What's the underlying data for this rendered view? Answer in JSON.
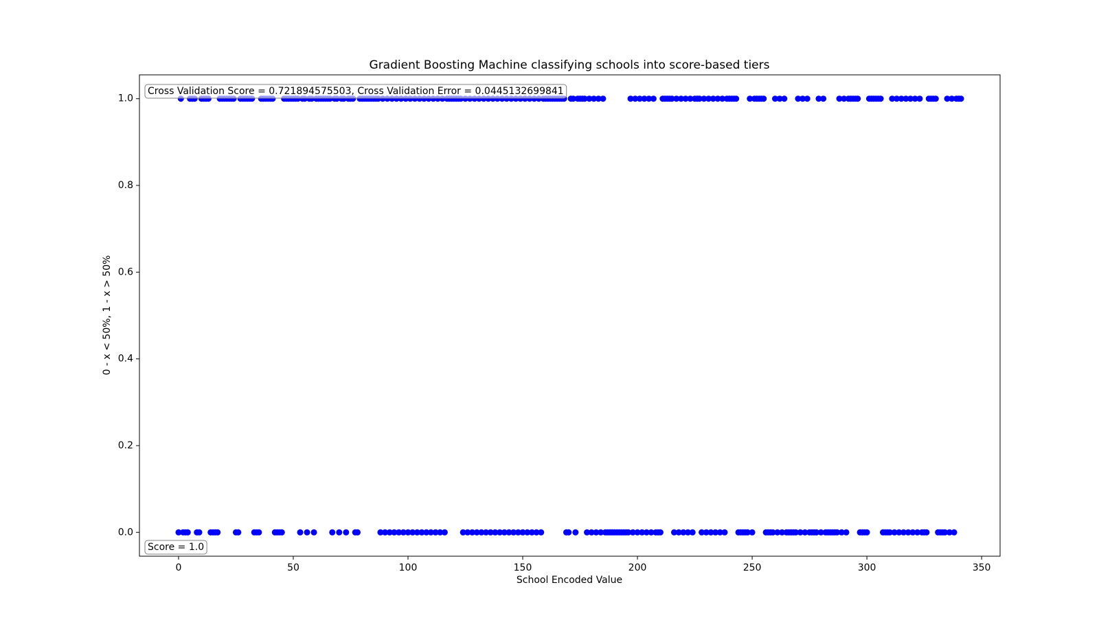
{
  "chart_data": {
    "type": "scatter",
    "title": "Gradient Boosting Machine classifying schools into score-based tiers",
    "xlabel": "School Encoded Value",
    "ylabel": "0 - x < 50%, 1 - x > 50%",
    "annotations": [
      "Cross Validation Score = 0.721894575503, Cross Validation Error = 0.0445132699841",
      "Score = 1.0"
    ],
    "color": "#0000ff",
    "xlim": [
      -17.05,
      358.05
    ],
    "ylim": [
      -0.055,
      1.055
    ],
    "xticks": [
      0,
      50,
      100,
      150,
      200,
      250,
      300,
      350
    ],
    "yticks": [
      {
        "value": 0,
        "label": "0.0"
      },
      {
        "value": 0.2,
        "label": "0.2"
      },
      {
        "value": 0.4,
        "label": "0.4"
      },
      {
        "value": 0.6,
        "label": "0.6"
      },
      {
        "value": 0.8,
        "label": "0.8"
      },
      {
        "value": 1,
        "label": "1.0"
      }
    ],
    "x": [
      0,
      1,
      2,
      3,
      4,
      5,
      6,
      7,
      8,
      9,
      10,
      11,
      12,
      13,
      14,
      15,
      16,
      17,
      18,
      19,
      20,
      21,
      22,
      23,
      24,
      25,
      26,
      27,
      28,
      29,
      30,
      31,
      32,
      33,
      34,
      35,
      36,
      37,
      38,
      39,
      40,
      41,
      42,
      43,
      44,
      45,
      46,
      47,
      48,
      49,
      50,
      51,
      52,
      53,
      54,
      55,
      56,
      57,
      58,
      59,
      60,
      61,
      62,
      63,
      64,
      65,
      66,
      67,
      68,
      69,
      70,
      71,
      72,
      73,
      74,
      75,
      76,
      77,
      78,
      79,
      80,
      81,
      82,
      83,
      84,
      85,
      86,
      87,
      88,
      89,
      90,
      91,
      92,
      93,
      94,
      95,
      96,
      97,
      98,
      99,
      100,
      101,
      102,
      103,
      104,
      105,
      106,
      107,
      108,
      109,
      110,
      111,
      112,
      113,
      114,
      115,
      116,
      117,
      118,
      119,
      120,
      121,
      122,
      123,
      124,
      125,
      126,
      127,
      128,
      129,
      130,
      131,
      132,
      133,
      134,
      135,
      136,
      137,
      138,
      139,
      140,
      141,
      142,
      143,
      144,
      145,
      146,
      147,
      148,
      149,
      150,
      151,
      152,
      153,
      154,
      155,
      156,
      157,
      158,
      159,
      160,
      161,
      162,
      163,
      164,
      165,
      166,
      167,
      168,
      169,
      170,
      171,
      172,
      173,
      174,
      175,
      176,
      177,
      178,
      179,
      180,
      181,
      182,
      183,
      184,
      185,
      186,
      187,
      188,
      189,
      190,
      191,
      192,
      193,
      194,
      195,
      196,
      197,
      198,
      199,
      200,
      201,
      202,
      203,
      204,
      205,
      206,
      207,
      208,
      209,
      210,
      211,
      212,
      213,
      214,
      215,
      216,
      217,
      218,
      219,
      220,
      221,
      222,
      223,
      224,
      225,
      226,
      227,
      228,
      229,
      230,
      231,
      232,
      233,
      234,
      235,
      236,
      237,
      238,
      239,
      240,
      241,
      242,
      243,
      244,
      245,
      246,
      247,
      248,
      249,
      250,
      251,
      252,
      253,
      254,
      255,
      256,
      257,
      258,
      259,
      260,
      261,
      262,
      263,
      264,
      265,
      266,
      267,
      268,
      269,
      270,
      271,
      272,
      273,
      274,
      275,
      276,
      277,
      278,
      279,
      280,
      281,
      282,
      283,
      284,
      285,
      286,
      287,
      288,
      289,
      290,
      291,
      292,
      293,
      294,
      295,
      296,
      297,
      298,
      299,
      300,
      301,
      302,
      303,
      304,
      305,
      306,
      307,
      308,
      309,
      310,
      311,
      312,
      313,
      314,
      315,
      316,
      317,
      318,
      319,
      320,
      321,
      322,
      323,
      324,
      325,
      326,
      327,
      328,
      329,
      330,
      331,
      332,
      333,
      334,
      335,
      336,
      337,
      338,
      339,
      340,
      341
    ],
    "y": [
      0,
      1,
      0,
      0,
      0,
      1,
      1,
      1,
      0,
      0,
      1,
      1,
      1,
      1,
      0,
      0,
      0,
      0,
      1,
      1,
      1,
      1,
      1,
      1,
      1,
      0,
      0,
      1,
      1,
      1,
      1,
      1,
      1,
      0,
      0,
      0,
      1,
      1,
      1,
      1,
      1,
      1,
      0,
      0,
      0,
      0,
      1,
      1,
      1,
      1,
      1,
      1,
      1,
      0,
      1,
      1,
      0,
      1,
      1,
      0,
      1,
      1,
      1,
      1,
      1,
      1,
      1,
      0,
      1,
      1,
      0,
      1,
      1,
      0,
      1,
      1,
      1,
      0,
      0,
      1,
      1,
      1,
      1,
      1,
      1,
      1,
      1,
      1,
      0,
      1,
      0,
      1,
      0,
      1,
      0,
      1,
      0,
      1,
      0,
      1,
      0,
      1,
      0,
      1,
      0,
      1,
      0,
      1,
      0,
      1,
      0,
      1,
      0,
      1,
      0,
      1,
      0,
      1,
      1,
      1,
      1,
      1,
      1,
      1,
      0,
      1,
      0,
      1,
      0,
      1,
      0,
      1,
      0,
      1,
      0,
      1,
      0,
      1,
      0,
      1,
      0,
      1,
      0,
      1,
      0,
      1,
      0,
      1,
      0,
      1,
      0,
      1,
      0,
      1,
      0,
      1,
      0,
      1,
      0,
      1,
      1,
      1,
      1,
      1,
      1,
      1,
      1,
      1,
      1,
      0,
      0,
      1,
      1,
      0,
      1,
      1,
      1,
      1,
      0,
      1,
      0,
      1,
      0,
      1,
      0,
      1,
      0,
      0,
      0,
      0,
      0,
      0,
      0,
      0,
      0,
      0,
      0,
      1,
      0,
      1,
      0,
      1,
      0,
      1,
      0,
      1,
      0,
      1,
      0,
      0,
      0,
      1,
      1,
      1,
      1,
      1,
      0,
      1,
      0,
      1,
      0,
      1,
      0,
      1,
      0,
      1,
      1,
      1,
      0,
      1,
      0,
      1,
      0,
      1,
      0,
      1,
      0,
      1,
      0,
      1,
      1,
      1,
      1,
      1,
      0,
      0,
      0,
      0,
      0,
      1,
      0,
      1,
      1,
      1,
      1,
      1,
      0,
      0,
      0,
      0,
      1,
      0,
      1,
      0,
      1,
      0,
      0,
      0,
      0,
      0,
      1,
      0,
      1,
      0,
      1,
      0,
      0,
      0,
      0,
      1,
      0,
      1,
      0,
      0,
      0,
      0,
      0,
      0,
      1,
      0,
      1,
      0,
      1,
      1,
      1,
      1,
      1,
      0,
      0,
      0,
      0,
      1,
      1,
      1,
      1,
      1,
      1,
      0,
      0,
      0,
      0,
      1,
      0,
      1,
      0,
      1,
      0,
      1,
      0,
      1,
      0,
      1,
      0,
      1,
      0,
      0,
      0,
      1,
      1,
      1,
      1,
      0,
      0,
      0,
      0,
      1,
      0,
      1,
      0,
      1,
      1,
      1
    ]
  }
}
